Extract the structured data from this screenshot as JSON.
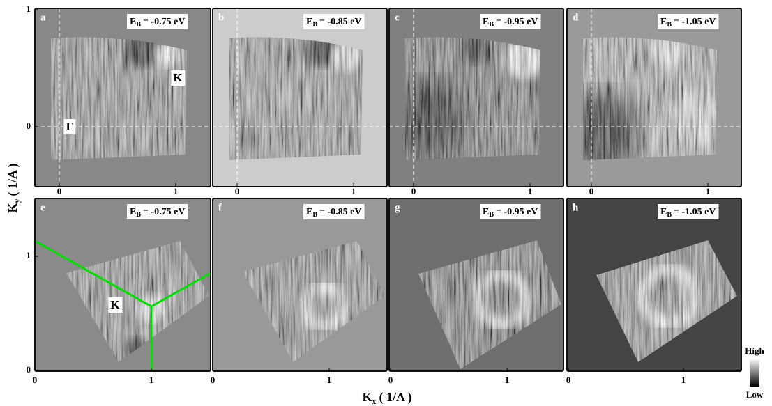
{
  "figure": {
    "panels": [
      {
        "letter": "a",
        "energy": {
          "symbol": "E",
          "subscript": "B",
          "value": "= -0.75 eV"
        },
        "x_ticks": [
          "0",
          "1"
        ],
        "y_ticks": [
          "1",
          "0"
        ],
        "markers": [
          "K",
          "Γ"
        ]
      },
      {
        "letter": "b",
        "energy": {
          "symbol": "E",
          "subscript": "B",
          "value": "= -0.85 eV"
        },
        "x_ticks": [
          "0",
          "1"
        ]
      },
      {
        "letter": "c",
        "energy": {
          "symbol": "E",
          "subscript": "B",
          "value": "= -0.95 eV"
        },
        "x_ticks": [
          "0",
          "1"
        ]
      },
      {
        "letter": "d",
        "energy": {
          "symbol": "E",
          "subscript": "B",
          "value": "= -1.05 eV"
        },
        "x_ticks": [
          "0",
          "1"
        ]
      },
      {
        "letter": "e",
        "energy": {
          "symbol": "E",
          "subscript": "B",
          "value": "= -0.75 eV"
        },
        "x_ticks": [
          "0",
          "1"
        ],
        "y_ticks": [
          "1",
          "0"
        ],
        "markers": [
          "K"
        ]
      },
      {
        "letter": "f",
        "energy": {
          "symbol": "E",
          "subscript": "B",
          "value": "= -0.85 eV"
        },
        "x_ticks": [
          "0",
          "1"
        ]
      },
      {
        "letter": "g",
        "energy": {
          "symbol": "E",
          "subscript": "B",
          "value": "= -0.95 eV"
        },
        "x_ticks": [
          "0",
          "1"
        ]
      },
      {
        "letter": "h",
        "energy": {
          "symbol": "E",
          "subscript": "B",
          "value": "= -1.05 eV"
        },
        "x_ticks": [
          "0",
          "1"
        ]
      }
    ],
    "y_axis_label": {
      "symbol": "K",
      "subscript": "y",
      "unit": "( 1/A )"
    },
    "x_axis_label": {
      "symbol": "K",
      "subscript": "x",
      "unit": "( 1/A )"
    },
    "colorbar": {
      "high": "High",
      "low": "Low"
    }
  }
}
